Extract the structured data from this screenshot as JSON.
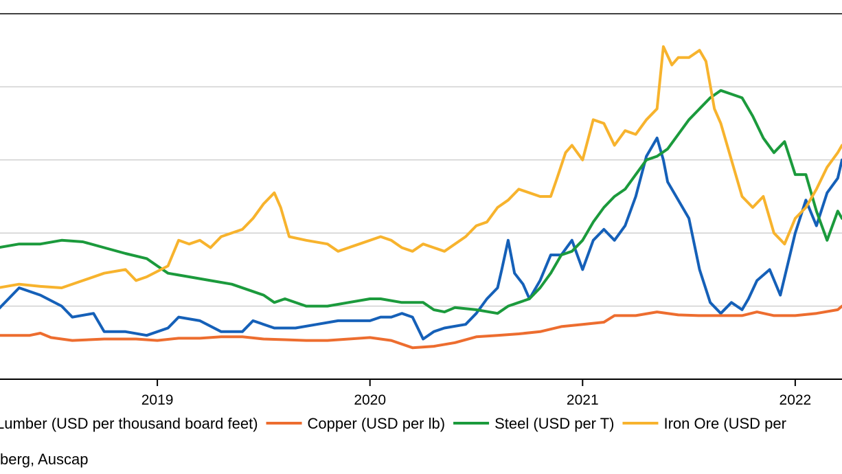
{
  "chart_data": {
    "type": "line",
    "title": "",
    "xlabel": "",
    "ylabel": "",
    "x_ticks": [
      "2019",
      "2020",
      "2021",
      "2022"
    ],
    "grid": true,
    "legend_position": "bottom",
    "series": [
      {
        "name": "Lumber (USD per thousand board feet)",
        "color": "#1560b8",
        "points": [
          [
            2018.25,
            0.95
          ],
          [
            2018.35,
            1.25
          ],
          [
            2018.45,
            1.15
          ],
          [
            2018.55,
            1.0
          ],
          [
            2018.6,
            0.85
          ],
          [
            2018.7,
            0.9
          ],
          [
            2018.75,
            0.65
          ],
          [
            2018.85,
            0.65
          ],
          [
            2018.95,
            0.6
          ],
          [
            2019.05,
            0.7
          ],
          [
            2019.1,
            0.85
          ],
          [
            2019.2,
            0.8
          ],
          [
            2019.3,
            0.65
          ],
          [
            2019.4,
            0.65
          ],
          [
            2019.45,
            0.8
          ],
          [
            2019.55,
            0.7
          ],
          [
            2019.65,
            0.7
          ],
          [
            2019.75,
            0.75
          ],
          [
            2019.85,
            0.8
          ],
          [
            2019.95,
            0.8
          ],
          [
            2020.0,
            0.8
          ],
          [
            2020.05,
            0.85
          ],
          [
            2020.1,
            0.85
          ],
          [
            2020.15,
            0.9
          ],
          [
            2020.2,
            0.85
          ],
          [
            2020.25,
            0.55
          ],
          [
            2020.3,
            0.65
          ],
          [
            2020.35,
            0.7
          ],
          [
            2020.45,
            0.75
          ],
          [
            2020.5,
            0.9
          ],
          [
            2020.55,
            1.1
          ],
          [
            2020.6,
            1.25
          ],
          [
            2020.62,
            1.5
          ],
          [
            2020.65,
            1.9
          ],
          [
            2020.68,
            1.45
          ],
          [
            2020.72,
            1.3
          ],
          [
            2020.75,
            1.1
          ],
          [
            2020.8,
            1.35
          ],
          [
            2020.85,
            1.7
          ],
          [
            2020.9,
            1.7
          ],
          [
            2020.95,
            1.9
          ],
          [
            2021.0,
            1.5
          ],
          [
            2021.05,
            1.9
          ],
          [
            2021.1,
            2.05
          ],
          [
            2021.15,
            1.9
          ],
          [
            2021.2,
            2.1
          ],
          [
            2021.25,
            2.5
          ],
          [
            2021.3,
            3.05
          ],
          [
            2021.35,
            3.3
          ],
          [
            2021.38,
            3.0
          ],
          [
            2021.4,
            2.7
          ],
          [
            2021.45,
            2.45
          ],
          [
            2021.5,
            2.2
          ],
          [
            2021.55,
            1.5
          ],
          [
            2021.6,
            1.05
          ],
          [
            2021.65,
            0.9
          ],
          [
            2021.7,
            1.05
          ],
          [
            2021.75,
            0.95
          ],
          [
            2021.78,
            1.1
          ],
          [
            2021.82,
            1.35
          ],
          [
            2021.88,
            1.5
          ],
          [
            2021.93,
            1.15
          ],
          [
            2022.0,
            2.0
          ],
          [
            2022.05,
            2.45
          ],
          [
            2022.1,
            2.1
          ],
          [
            2022.15,
            2.55
          ],
          [
            2022.2,
            2.75
          ],
          [
            2022.22,
            3.0
          ]
        ]
      },
      {
        "name": "Copper (USD per lb)",
        "color": "#ed6d2f",
        "points": [
          [
            2018.25,
            0.6
          ],
          [
            2018.4,
            0.6
          ],
          [
            2018.45,
            0.63
          ],
          [
            2018.5,
            0.57
          ],
          [
            2018.6,
            0.53
          ],
          [
            2018.75,
            0.55
          ],
          [
            2018.9,
            0.55
          ],
          [
            2019.0,
            0.53
          ],
          [
            2019.1,
            0.56
          ],
          [
            2019.2,
            0.56
          ],
          [
            2019.3,
            0.58
          ],
          [
            2019.4,
            0.58
          ],
          [
            2019.5,
            0.55
          ],
          [
            2019.6,
            0.54
          ],
          [
            2019.7,
            0.53
          ],
          [
            2019.8,
            0.53
          ],
          [
            2019.9,
            0.55
          ],
          [
            2020.0,
            0.57
          ],
          [
            2020.05,
            0.55
          ],
          [
            2020.1,
            0.53
          ],
          [
            2020.2,
            0.43
          ],
          [
            2020.3,
            0.45
          ],
          [
            2020.4,
            0.5
          ],
          [
            2020.5,
            0.58
          ],
          [
            2020.6,
            0.6
          ],
          [
            2020.7,
            0.62
          ],
          [
            2020.8,
            0.65
          ],
          [
            2020.9,
            0.72
          ],
          [
            2021.0,
            0.75
          ],
          [
            2021.1,
            0.78
          ],
          [
            2021.15,
            0.87
          ],
          [
            2021.25,
            0.87
          ],
          [
            2021.35,
            0.92
          ],
          [
            2021.45,
            0.88
          ],
          [
            2021.55,
            0.87
          ],
          [
            2021.65,
            0.87
          ],
          [
            2021.75,
            0.87
          ],
          [
            2021.82,
            0.92
          ],
          [
            2021.9,
            0.87
          ],
          [
            2022.0,
            0.87
          ],
          [
            2022.1,
            0.9
          ],
          [
            2022.2,
            0.95
          ],
          [
            2022.22,
            1.0
          ]
        ]
      },
      {
        "name": "Steel (USD per T)",
        "color": "#1b9a3c",
        "points": [
          [
            2018.25,
            1.8
          ],
          [
            2018.35,
            1.85
          ],
          [
            2018.45,
            1.85
          ],
          [
            2018.55,
            1.9
          ],
          [
            2018.65,
            1.88
          ],
          [
            2018.75,
            1.8
          ],
          [
            2018.85,
            1.72
          ],
          [
            2018.95,
            1.65
          ],
          [
            2019.0,
            1.55
          ],
          [
            2019.05,
            1.45
          ],
          [
            2019.15,
            1.4
          ],
          [
            2019.25,
            1.35
          ],
          [
            2019.35,
            1.3
          ],
          [
            2019.45,
            1.2
          ],
          [
            2019.5,
            1.15
          ],
          [
            2019.55,
            1.05
          ],
          [
            2019.6,
            1.1
          ],
          [
            2019.7,
            1.0
          ],
          [
            2019.8,
            1.0
          ],
          [
            2019.9,
            1.05
          ],
          [
            2020.0,
            1.1
          ],
          [
            2020.05,
            1.1
          ],
          [
            2020.15,
            1.05
          ],
          [
            2020.25,
            1.05
          ],
          [
            2020.3,
            0.95
          ],
          [
            2020.35,
            0.92
          ],
          [
            2020.4,
            0.98
          ],
          [
            2020.5,
            0.95
          ],
          [
            2020.6,
            0.9
          ],
          [
            2020.65,
            1.0
          ],
          [
            2020.7,
            1.05
          ],
          [
            2020.75,
            1.1
          ],
          [
            2020.8,
            1.25
          ],
          [
            2020.85,
            1.45
          ],
          [
            2020.9,
            1.7
          ],
          [
            2020.95,
            1.75
          ],
          [
            2021.0,
            1.9
          ],
          [
            2021.05,
            2.15
          ],
          [
            2021.1,
            2.35
          ],
          [
            2021.15,
            2.5
          ],
          [
            2021.2,
            2.6
          ],
          [
            2021.25,
            2.8
          ],
          [
            2021.3,
            3.0
          ],
          [
            2021.35,
            3.05
          ],
          [
            2021.4,
            3.15
          ],
          [
            2021.45,
            3.35
          ],
          [
            2021.5,
            3.55
          ],
          [
            2021.55,
            3.7
          ],
          [
            2021.6,
            3.85
          ],
          [
            2021.65,
            3.95
          ],
          [
            2021.7,
            3.9
          ],
          [
            2021.75,
            3.85
          ],
          [
            2021.8,
            3.6
          ],
          [
            2021.85,
            3.3
          ],
          [
            2021.9,
            3.1
          ],
          [
            2021.95,
            3.25
          ],
          [
            2022.0,
            2.8
          ],
          [
            2022.05,
            2.8
          ],
          [
            2022.1,
            2.3
          ],
          [
            2022.15,
            1.9
          ],
          [
            2022.2,
            2.3
          ],
          [
            2022.22,
            2.2
          ]
        ]
      },
      {
        "name": "Iron Ore (USD per",
        "color": "#f7b32d",
        "points": [
          [
            2018.25,
            1.25
          ],
          [
            2018.35,
            1.3
          ],
          [
            2018.45,
            1.27
          ],
          [
            2018.55,
            1.25
          ],
          [
            2018.65,
            1.35
          ],
          [
            2018.75,
            1.45
          ],
          [
            2018.85,
            1.5
          ],
          [
            2018.9,
            1.35
          ],
          [
            2018.95,
            1.4
          ],
          [
            2019.05,
            1.55
          ],
          [
            2019.1,
            1.9
          ],
          [
            2019.15,
            1.85
          ],
          [
            2019.2,
            1.9
          ],
          [
            2019.25,
            1.8
          ],
          [
            2019.3,
            1.95
          ],
          [
            2019.4,
            2.05
          ],
          [
            2019.45,
            2.2
          ],
          [
            2019.5,
            2.4
          ],
          [
            2019.55,
            2.55
          ],
          [
            2019.58,
            2.35
          ],
          [
            2019.62,
            1.95
          ],
          [
            2019.7,
            1.9
          ],
          [
            2019.8,
            1.85
          ],
          [
            2019.85,
            1.75
          ],
          [
            2019.95,
            1.85
          ],
          [
            2020.05,
            1.95
          ],
          [
            2020.1,
            1.9
          ],
          [
            2020.15,
            1.8
          ],
          [
            2020.2,
            1.75
          ],
          [
            2020.25,
            1.85
          ],
          [
            2020.3,
            1.8
          ],
          [
            2020.35,
            1.75
          ],
          [
            2020.45,
            1.95
          ],
          [
            2020.5,
            2.1
          ],
          [
            2020.55,
            2.15
          ],
          [
            2020.6,
            2.35
          ],
          [
            2020.65,
            2.45
          ],
          [
            2020.7,
            2.6
          ],
          [
            2020.75,
            2.55
          ],
          [
            2020.8,
            2.5
          ],
          [
            2020.85,
            2.5
          ],
          [
            2020.88,
            2.75
          ],
          [
            2020.92,
            3.1
          ],
          [
            2020.95,
            3.2
          ],
          [
            2021.0,
            3.0
          ],
          [
            2021.05,
            3.55
          ],
          [
            2021.1,
            3.5
          ],
          [
            2021.15,
            3.2
          ],
          [
            2021.2,
            3.4
          ],
          [
            2021.25,
            3.35
          ],
          [
            2021.3,
            3.55
          ],
          [
            2021.35,
            3.7
          ],
          [
            2021.38,
            4.55
          ],
          [
            2021.42,
            4.3
          ],
          [
            2021.45,
            4.4
          ],
          [
            2021.5,
            4.4
          ],
          [
            2021.55,
            4.5
          ],
          [
            2021.58,
            4.35
          ],
          [
            2021.62,
            3.7
          ],
          [
            2021.65,
            3.5
          ],
          [
            2021.7,
            3.0
          ],
          [
            2021.75,
            2.5
          ],
          [
            2021.8,
            2.35
          ],
          [
            2021.85,
            2.5
          ],
          [
            2021.9,
            2.0
          ],
          [
            2021.95,
            1.85
          ],
          [
            2022.0,
            2.2
          ],
          [
            2022.05,
            2.35
          ],
          [
            2022.1,
            2.6
          ],
          [
            2022.15,
            2.9
          ],
          [
            2022.2,
            3.1
          ],
          [
            2022.22,
            3.2
          ]
        ]
      }
    ]
  },
  "source": {
    "text": "berg, Auscap"
  }
}
